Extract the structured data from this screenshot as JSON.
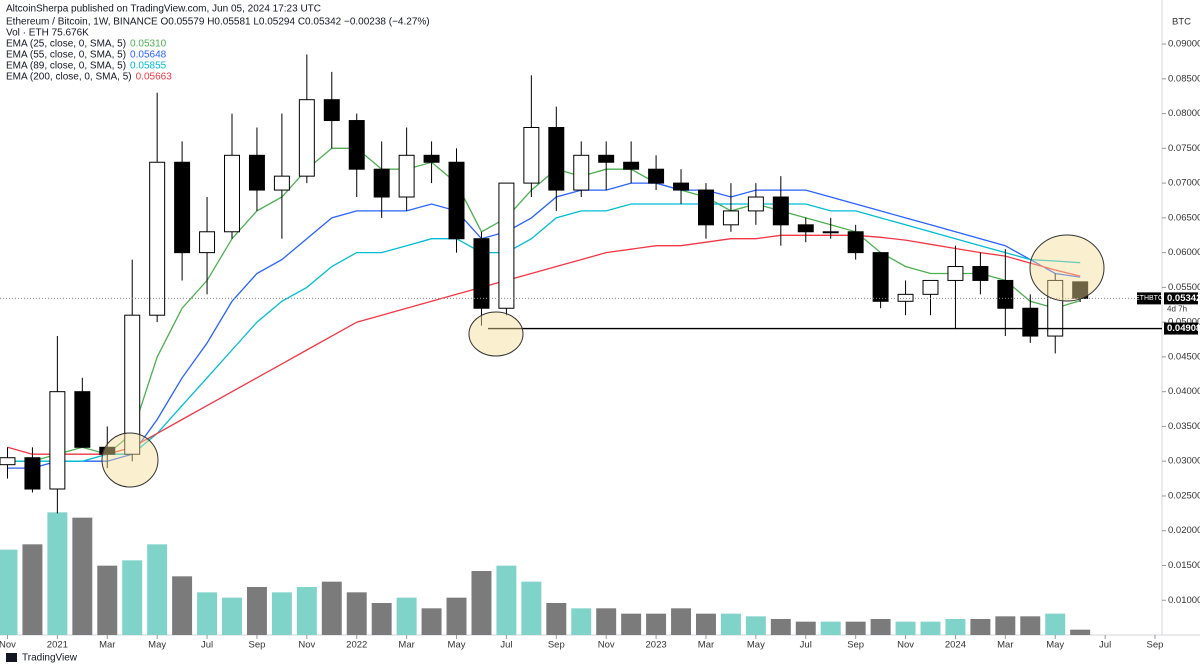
{
  "header": {
    "publisher": "AltcoinSherpa published on TradingView.com, Jun 05, 2024 17:23 UTC",
    "symbol_line": "Ethereum / Bitcoin, 1W, BINANCE  O0.05579  H0.05581  L0.05294  C0.05342  −0.00238 (−4.27%)",
    "volume_line": "Vol · ETH  75.676K",
    "axis_unit": "BTC",
    "footer": "TradingView"
  },
  "chart_data": {
    "type": "candlestick",
    "x": [
      0,
      1,
      2,
      3,
      4,
      5,
      6,
      7,
      8,
      9,
      10,
      11,
      12,
      13,
      14,
      15,
      16,
      17,
      18,
      19,
      20,
      21,
      22,
      23,
      24,
      25,
      26,
      27,
      28,
      29,
      30,
      31,
      32,
      33,
      34,
      35,
      36,
      37,
      38,
      39,
      40,
      41,
      42,
      43
    ],
    "open": [
      0.0295,
      0.0305,
      0.026,
      0.04,
      0.032,
      0.031,
      0.051,
      0.073,
      0.06,
      0.063,
      0.074,
      0.069,
      0.071,
      0.082,
      0.079,
      0.072,
      0.068,
      0.074,
      0.073,
      0.062,
      0.052,
      0.07,
      0.078,
      0.069,
      0.074,
      0.073,
      0.072,
      0.07,
      0.069,
      0.064,
      0.066,
      0.068,
      0.064,
      0.063,
      0.063,
      0.06,
      0.053,
      0.054,
      0.056,
      0.058,
      0.056,
      0.052,
      0.048,
      0.0558
    ],
    "high": [
      0.032,
      0.032,
      0.048,
      0.042,
      0.035,
      0.059,
      0.083,
      0.076,
      0.068,
      0.08,
      0.078,
      0.08,
      0.0885,
      0.086,
      0.08,
      0.076,
      0.078,
      0.076,
      0.075,
      0.063,
      0.07,
      0.0855,
      0.081,
      0.076,
      0.076,
      0.076,
      0.074,
      0.072,
      0.07,
      0.07,
      0.07,
      0.071,
      0.065,
      0.065,
      0.064,
      0.06,
      0.056,
      0.056,
      0.061,
      0.06,
      0.0605,
      0.054,
      0.057,
      0.0558
    ],
    "low": [
      0.0275,
      0.0255,
      0.0225,
      0.032,
      0.029,
      0.03,
      0.05,
      0.056,
      0.054,
      0.062,
      0.066,
      0.062,
      0.07,
      0.075,
      0.068,
      0.065,
      0.066,
      0.07,
      0.06,
      0.0495,
      0.051,
      0.068,
      0.066,
      0.068,
      0.069,
      0.07,
      0.069,
      0.067,
      0.062,
      0.063,
      0.064,
      0.061,
      0.0615,
      0.062,
      0.059,
      0.052,
      0.051,
      0.051,
      0.049,
      0.054,
      0.048,
      0.047,
      0.0455,
      0.0529
    ],
    "close": [
      0.0305,
      0.026,
      0.04,
      0.032,
      0.031,
      0.051,
      0.073,
      0.06,
      0.063,
      0.074,
      0.069,
      0.071,
      0.082,
      0.079,
      0.072,
      0.068,
      0.074,
      0.073,
      0.062,
      0.052,
      0.07,
      0.078,
      0.069,
      0.074,
      0.073,
      0.072,
      0.07,
      0.069,
      0.064,
      0.066,
      0.068,
      0.064,
      0.063,
      0.063,
      0.06,
      0.053,
      0.054,
      0.056,
      0.058,
      0.056,
      0.052,
      0.048,
      0.056,
      0.05342
    ],
    "volume": [
      1600,
      1700,
      2300,
      2200,
      1300,
      1400,
      1700,
      1100,
      800,
      700,
      900,
      800,
      900,
      1000,
      800,
      600,
      700,
      500,
      700,
      1200,
      1300,
      1000,
      600,
      500,
      500,
      400,
      400,
      500,
      400,
      400,
      350,
      300,
      250,
      250,
      250,
      300,
      250,
      250,
      300,
      300,
      350,
      350,
      400,
      100
    ],
    "volume_lim": [
      0,
      3000
    ],
    "series": [
      {
        "name": "EMA (25, close, 0, SMA, 5)",
        "legend_value": "0.05310",
        "color": "#4caf50",
        "values": [
          0.03,
          0.03,
          0.031,
          0.032,
          0.031,
          0.034,
          0.045,
          0.052,
          0.056,
          0.062,
          0.066,
          0.068,
          0.072,
          0.075,
          0.075,
          0.072,
          0.072,
          0.073,
          0.07,
          0.063,
          0.065,
          0.069,
          0.072,
          0.071,
          0.072,
          0.072,
          0.07,
          0.069,
          0.068,
          0.066,
          0.067,
          0.066,
          0.065,
          0.064,
          0.063,
          0.06,
          0.058,
          0.057,
          0.057,
          0.057,
          0.056,
          0.053,
          0.052,
          0.0531
        ]
      },
      {
        "name": "EMA (55, close, 0, SMA, 5)",
        "legend_value": "0.05648",
        "color": "#2962ff",
        "values": [
          0.029,
          0.029,
          0.03,
          0.03,
          0.03,
          0.031,
          0.036,
          0.042,
          0.047,
          0.053,
          0.057,
          0.059,
          0.062,
          0.065,
          0.066,
          0.066,
          0.066,
          0.067,
          0.066,
          0.062,
          0.063,
          0.065,
          0.068,
          0.069,
          0.069,
          0.07,
          0.07,
          0.069,
          0.069,
          0.068,
          0.069,
          0.069,
          0.069,
          0.068,
          0.067,
          0.066,
          0.065,
          0.064,
          0.063,
          0.062,
          0.061,
          0.059,
          0.057,
          0.05648
        ]
      },
      {
        "name": "EMA (89, close, 0, SMA, 5)",
        "legend_value": "0.05855",
        "color": "#00bcd4",
        "values": [
          0.03,
          0.03,
          0.03,
          0.03,
          0.031,
          0.031,
          0.034,
          0.038,
          0.042,
          0.046,
          0.05,
          0.053,
          0.055,
          0.058,
          0.06,
          0.06,
          0.061,
          0.062,
          0.062,
          0.06,
          0.06,
          0.062,
          0.065,
          0.066,
          0.066,
          0.067,
          0.067,
          0.067,
          0.067,
          0.067,
          0.067,
          0.067,
          0.067,
          0.066,
          0.066,
          0.065,
          0.064,
          0.063,
          0.062,
          0.061,
          0.06,
          0.059,
          0.0588,
          0.05855
        ]
      },
      {
        "name": "EMA (200, close, 0, SMA, 5)",
        "legend_value": "0.05663",
        "color": "#f23645",
        "values": [
          0.032,
          0.031,
          0.031,
          0.031,
          0.031,
          0.032,
          0.034,
          0.036,
          0.038,
          0.04,
          0.042,
          0.044,
          0.046,
          0.048,
          0.05,
          0.051,
          0.052,
          0.053,
          0.054,
          0.055,
          0.056,
          0.057,
          0.058,
          0.059,
          0.06,
          0.0605,
          0.061,
          0.061,
          0.0615,
          0.062,
          0.062,
          0.0625,
          0.0625,
          0.0625,
          0.0625,
          0.0622,
          0.0618,
          0.0612,
          0.0606,
          0.06,
          0.0595,
          0.0585,
          0.0575,
          0.05663
        ]
      }
    ],
    "xlim": [
      -0.3,
      46.2
    ],
    "xticks": [
      {
        "value": 0,
        "label": "Nov"
      },
      {
        "value": 2,
        "label": "2021"
      },
      {
        "value": 4,
        "label": "Mar"
      },
      {
        "value": 6,
        "label": "May"
      },
      {
        "value": 8,
        "label": "Jul"
      },
      {
        "value": 10,
        "label": "Sep"
      },
      {
        "value": 12,
        "label": "Nov"
      },
      {
        "value": 14,
        "label": "2022"
      },
      {
        "value": 16,
        "label": "Mar"
      },
      {
        "value": 18,
        "label": "May"
      },
      {
        "value": 20,
        "label": "Jul"
      },
      {
        "value": 22,
        "label": "Sep"
      },
      {
        "value": 24,
        "label": "Nov"
      },
      {
        "value": 26,
        "label": "2023"
      },
      {
        "value": 28,
        "label": "Mar"
      },
      {
        "value": 30,
        "label": "May"
      },
      {
        "value": 32,
        "label": "Jul"
      },
      {
        "value": 34,
        "label": "Sep"
      },
      {
        "value": 36,
        "label": "Nov"
      },
      {
        "value": 38,
        "label": "2024"
      },
      {
        "value": 40,
        "label": "Mar"
      },
      {
        "value": 42,
        "label": "May"
      },
      {
        "value": 44,
        "label": "Jul"
      },
      {
        "value": 46,
        "label": "Sep"
      }
    ],
    "ylim": [
      0.005,
      0.0949
    ],
    "yticks": [
      {
        "value": 0.01,
        "label": "0.01000"
      },
      {
        "value": 0.015,
        "label": "0.01500"
      },
      {
        "value": 0.02,
        "label": "0.02000"
      },
      {
        "value": 0.025,
        "label": "0.02500"
      },
      {
        "value": 0.03,
        "label": "0.03000"
      },
      {
        "value": 0.035,
        "label": "0.03500"
      },
      {
        "value": 0.04,
        "label": "0.04000"
      },
      {
        "value": 0.045,
        "label": "0.04500"
      },
      {
        "value": 0.05,
        "label": "0.05000"
      },
      {
        "value": 0.055,
        "label": "0.05500"
      },
      {
        "value": 0.06,
        "label": "0.06000"
      },
      {
        "value": 0.065,
        "label": "0.06500"
      },
      {
        "value": 0.07,
        "label": "0.07000"
      },
      {
        "value": 0.075,
        "label": "0.07500"
      },
      {
        "value": 0.08,
        "label": "0.08000"
      },
      {
        "value": 0.085,
        "label": "0.08500"
      },
      {
        "value": 0.09,
        "label": "0.09000"
      }
    ],
    "hline": {
      "value": 0.04908,
      "label": "0.04908"
    },
    "last_price": {
      "value": 0.05342,
      "label": "0.05342",
      "symbol": "ETHBTC",
      "countdown": "4d 7h"
    },
    "up_color": "#ffffff",
    "down_color": "#000000",
    "volume_up_color": "#7fd3c9",
    "volume_down_color": "#7b7b7b"
  }
}
